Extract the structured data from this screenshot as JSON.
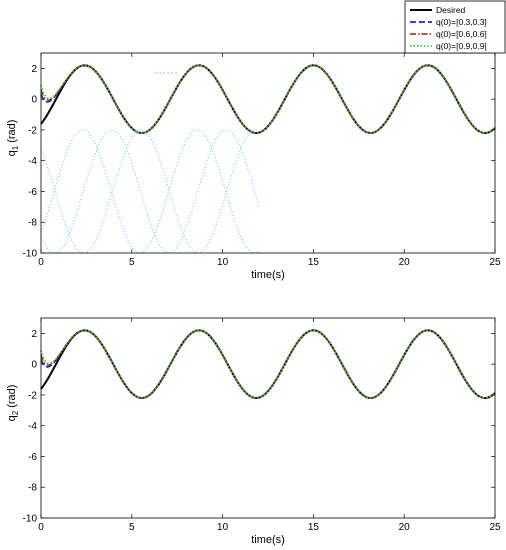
{
  "legend": {
    "placement": "top-right",
    "entries": [
      {
        "label": "Desired",
        "color": "#000000",
        "style": "solid"
      },
      {
        "label": "q(0)=[0.3,0.3]",
        "color": "#0000cc",
        "style": "dashed"
      },
      {
        "label": "q(0)=[0.6,0.6]",
        "color": "#a0200a",
        "style": "dashdot"
      },
      {
        "label": "q(0)=[0.9,0.9]",
        "color": "#33cc33",
        "style": "dotted"
      }
    ]
  },
  "chart_data": [
    {
      "type": "line",
      "xlabel": "time(s)",
      "ylabel_main": "q",
      "ylabel_sub": "1",
      "ylabel_unit": " (rad)",
      "xlim": [
        0,
        25
      ],
      "ylim": [
        -10,
        3
      ],
      "xticks": [
        "0",
        "5",
        "10",
        "15",
        "20",
        "25"
      ],
      "yticks": [
        "2",
        "0",
        "-2",
        "-4",
        "-6",
        "-8",
        "-10"
      ],
      "grid": false,
      "desired": {
        "amplitude": 2.2,
        "period": 6.3,
        "peak_time": 2.4
      },
      "series": [
        {
          "name": "Desired",
          "initial_value": -1.6
        },
        {
          "name": "q(0)=[0.3,0.3]",
          "initial_value": 0.3
        },
        {
          "name": "q(0)=[0.6,0.6]",
          "initial_value": 0.6
        },
        {
          "name": "q(0)=[0.9,0.9]",
          "initial_value": 0.9
        }
      ]
    },
    {
      "type": "line",
      "xlabel": "time(s)",
      "ylabel_main": "q",
      "ylabel_sub": "2",
      "ylabel_unit": " (rad)",
      "xlim": [
        0,
        25
      ],
      "ylim": [
        -10,
        3
      ],
      "xticks": [
        "0",
        "5",
        "10",
        "15",
        "20",
        "25"
      ],
      "yticks": [
        "2",
        "0",
        "-2",
        "-4",
        "-6",
        "-8",
        "-10"
      ],
      "grid": false,
      "desired": {
        "amplitude": 2.2,
        "period": 6.3,
        "peak_time": 2.4
      },
      "series": [
        {
          "name": "Desired",
          "initial_value": -1.6
        },
        {
          "name": "q(0)=[0.3,0.3]",
          "initial_value": 0.3
        },
        {
          "name": "q(0)=[0.6,0.6]",
          "initial_value": 0.6
        },
        {
          "name": "q(0)=[0.9,0.9]",
          "initial_value": 0.9
        }
      ]
    }
  ]
}
